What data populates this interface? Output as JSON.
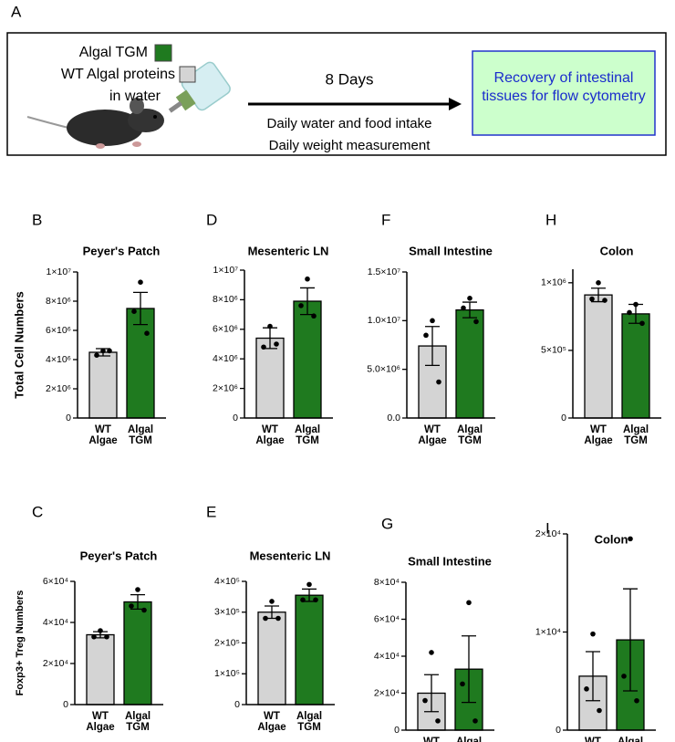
{
  "panel_a": {
    "label": "A",
    "legend": [
      {
        "label": "Algal TGM",
        "color": "#1f7a1f"
      },
      {
        "label": "WT Algal proteins",
        "color": "#d4d4d4"
      }
    ],
    "legend_note": "in water",
    "arrow_label": "8 Days",
    "notes": [
      "Daily water and food intake",
      "Daily weight measurement"
    ],
    "outcome": "Recovery of intestinal tissues for flow cytometry"
  },
  "chart_data": [
    {
      "type": "bar",
      "panel": "B",
      "title": "Peyer's Patch",
      "ylabel": "Total Cell Numbers",
      "categories": [
        "WT Algae",
        "Algal TGM"
      ],
      "colors": [
        "#d4d4d4",
        "#1f7a1f"
      ],
      "values": [
        4500000,
        7500000
      ],
      "errors": [
        250000,
        1100000
      ],
      "points": [
        [
          4600000,
          4300000,
          4600000
        ],
        [
          9300000,
          7300000,
          5800000
        ]
      ],
      "ylim": [
        0,
        10000000
      ],
      "yticks": [
        0,
        {
          "value": 2000000,
          "label": "2×10⁶"
        },
        {
          "value": 4000000,
          "label": "4×10⁶"
        },
        {
          "value": 6000000,
          "label": "6×10⁶"
        },
        {
          "value": 8000000,
          "label": "8×10⁶"
        },
        {
          "value": 10000000,
          "label": "1×10⁷"
        }
      ]
    },
    {
      "type": "bar",
      "panel": "D",
      "title": "Mesenteric LN",
      "categories": [
        "WT Algae",
        "Algal TGM"
      ],
      "colors": [
        "#d4d4d4",
        "#1f7a1f"
      ],
      "values": [
        5400000,
        7900000
      ],
      "errors": [
        700000,
        900000
      ],
      "points": [
        [
          6200000,
          4800000,
          5000000
        ],
        [
          9400000,
          7600000,
          6900000
        ]
      ],
      "ylim": [
        0,
        10000000
      ],
      "yticks": [
        0,
        {
          "value": 2000000,
          "label": "2×10⁶"
        },
        {
          "value": 4000000,
          "label": "4×10⁶"
        },
        {
          "value": 6000000,
          "label": "6×10⁶"
        },
        {
          "value": 8000000,
          "label": "8×10⁶"
        },
        {
          "value": 10000000,
          "label": "1×10⁷"
        }
      ]
    },
    {
      "type": "bar",
      "panel": "F",
      "title": "Small Intestine",
      "categories": [
        "WT Algae",
        "Algal TGM"
      ],
      "colors": [
        "#d4d4d4",
        "#1f7a1f"
      ],
      "values": [
        7400000,
        11100000
      ],
      "errors": [
        2000000,
        800000
      ],
      "points": [
        [
          10000000,
          8500000,
          3700000
        ],
        [
          12300000,
          11300000,
          9900000
        ]
      ],
      "ylim": [
        0,
        15000000
      ],
      "yticks": [
        {
          "value": 0,
          "label": "0.0"
        },
        {
          "value": 5000000,
          "label": "5.0×10⁶"
        },
        {
          "value": 10000000,
          "label": "1.0×10⁷"
        },
        {
          "value": 15000000,
          "label": "1.5×10⁷"
        }
      ]
    },
    {
      "type": "bar",
      "panel": "H",
      "title": "Colon",
      "categories": [
        "WT Algae",
        "Algal TGM"
      ],
      "colors": [
        "#d4d4d4",
        "#1f7a1f"
      ],
      "values": [
        910000,
        770000
      ],
      "errors": [
        50000,
        70000
      ],
      "points": [
        [
          1000000,
          880000,
          870000
        ],
        [
          840000,
          780000,
          700000
        ]
      ],
      "ylim": [
        0,
        1100000
      ],
      "yticks": [
        0,
        {
          "value": 500000,
          "label": "5×10⁵"
        },
        {
          "value": 1000000,
          "label": "1×10⁶"
        }
      ]
    },
    {
      "type": "bar",
      "panel": "C",
      "title": "Peyer's Patch",
      "ylabel": "Foxp3+ Treg Numbers",
      "categories": [
        "WT Algae",
        "Algal TGM"
      ],
      "colors": [
        "#d4d4d4",
        "#1f7a1f"
      ],
      "values": [
        34000,
        50000
      ],
      "errors": [
        1500,
        3500
      ],
      "points": [
        [
          36000,
          33000,
          33000
        ],
        [
          56000,
          48000,
          46000
        ]
      ],
      "ylim": [
        0,
        60000
      ],
      "yticks": [
        0,
        {
          "value": 20000,
          "label": "2×10⁴"
        },
        {
          "value": 40000,
          "label": "4×10⁴"
        },
        {
          "value": 60000,
          "label": "6×10⁴"
        }
      ]
    },
    {
      "type": "bar",
      "panel": "E",
      "title": "Mesenteric LN",
      "categories": [
        "WT Algae",
        "Algal TGM"
      ],
      "colors": [
        "#d4d4d4",
        "#1f7a1f"
      ],
      "values": [
        300000,
        355000
      ],
      "errors": [
        20000,
        20000
      ],
      "points": [
        [
          335000,
          280000,
          280000
        ],
        [
          390000,
          340000,
          340000
        ]
      ],
      "ylim": [
        0,
        400000
      ],
      "yticks": [
        0,
        {
          "value": 100000,
          "label": "1×10⁵"
        },
        {
          "value": 200000,
          "label": "2×10⁵"
        },
        {
          "value": 300000,
          "label": "3×10⁵"
        },
        {
          "value": 400000,
          "label": "4×10⁵"
        }
      ]
    },
    {
      "type": "bar",
      "panel": "G",
      "title": "Small Intestine",
      "categories": [
        "WT Algae",
        "Algal TGM"
      ],
      "colors": [
        "#d4d4d4",
        "#1f7a1f"
      ],
      "values": [
        20000,
        33000
      ],
      "errors": [
        10000,
        18000
      ],
      "points": [
        [
          42000,
          16000,
          5000
        ],
        [
          69000,
          25000,
          5000
        ]
      ],
      "ylim": [
        0,
        80000
      ],
      "yticks": [
        0,
        {
          "value": 20000,
          "label": "2×10⁴"
        },
        {
          "value": 40000,
          "label": "4×10⁴"
        },
        {
          "value": 60000,
          "label": "6×10⁴"
        },
        {
          "value": 80000,
          "label": "8×10⁴"
        }
      ]
    },
    {
      "type": "bar",
      "panel": "I",
      "title": "Colon",
      "categories": [
        "WT Algae",
        "Algal TGM"
      ],
      "colors": [
        "#d4d4d4",
        "#1f7a1f"
      ],
      "values": [
        5500,
        9200
      ],
      "errors": [
        2500,
        5200
      ],
      "points": [
        [
          9800,
          4200,
          2000
        ],
        [
          19500,
          5500,
          3000
        ]
      ],
      "ylim": [
        0,
        20000
      ],
      "yticks": [
        0,
        {
          "value": 10000,
          "label": "1×10⁴"
        },
        {
          "value": 20000,
          "label": "2×10⁴"
        }
      ]
    }
  ]
}
